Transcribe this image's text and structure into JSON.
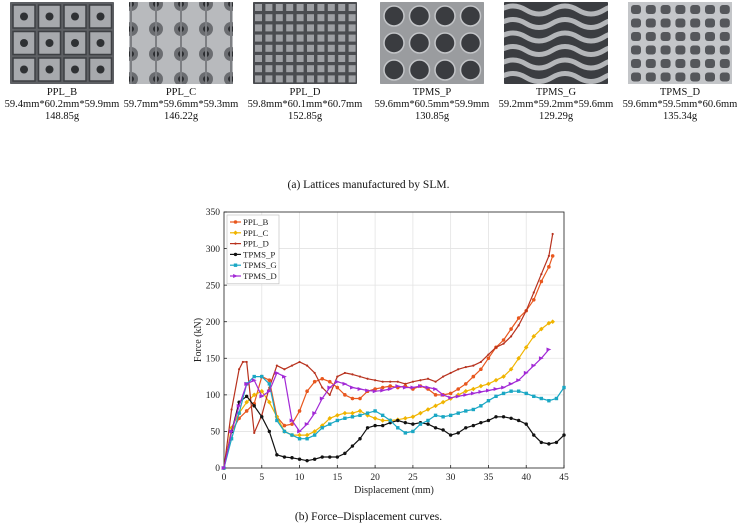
{
  "samples": [
    {
      "name": "PPL_B",
      "dims": "59.4mm*60.2mm*59.9mm",
      "mass": "148.85g",
      "pattern": "square-grid-holes"
    },
    {
      "name": "PPL_C",
      "dims": "59.7mm*59.6mm*59.3mm",
      "mass": "146.22g",
      "pattern": "cross-nodes"
    },
    {
      "name": "PPL_D",
      "dims": "59.8mm*60.1mm*60.7mm",
      "mass": "152.85g",
      "pattern": "fine-grid"
    },
    {
      "name": "TPMS_P",
      "dims": "59.6mm*60.5mm*59.9mm",
      "mass": "130.85g",
      "pattern": "circular-holes"
    },
    {
      "name": "TPMS_G",
      "dims": "59.2mm*59.2mm*59.6mm",
      "mass": "129.29g",
      "pattern": "gyroid-waves"
    },
    {
      "name": "TPMS_D",
      "dims": "59.6mm*59.5mm*60.6mm",
      "mass": "135.34g",
      "pattern": "diamond-cells"
    }
  ],
  "caption_a": "(a) Lattices manufactured by SLM.",
  "caption_b": "(b) Force–Displacement curves.",
  "chart_data": {
    "type": "line",
    "xlabel": "Displacement (mm)",
    "ylabel": "Force (kN)",
    "xlim": [
      0,
      45
    ],
    "ylim": [
      0,
      350
    ],
    "xticks": [
      0,
      5,
      10,
      15,
      20,
      25,
      30,
      35,
      40,
      45
    ],
    "yticks": [
      0,
      50,
      100,
      150,
      200,
      250,
      300,
      350
    ],
    "grid": true,
    "legend": "top-left",
    "series": [
      {
        "name": "PPL_B",
        "color": "#e8571e",
        "marker": "circle",
        "x": [
          0,
          1,
          2,
          3,
          4,
          5,
          6,
          7,
          8,
          9,
          10,
          11,
          12,
          13,
          14,
          15,
          16,
          17,
          18,
          19,
          20,
          21,
          22,
          23,
          24,
          25,
          26,
          27,
          28,
          29,
          30,
          31,
          32,
          33,
          34,
          35,
          36,
          37,
          38,
          39,
          40,
          41,
          42,
          43,
          43.5
        ],
        "y": [
          0,
          50,
          68,
          78,
          88,
          125,
          120,
          70,
          58,
          60,
          78,
          105,
          118,
          122,
          118,
          110,
          100,
          95,
          95,
          105,
          108,
          110,
          112,
          110,
          112,
          108,
          112,
          108,
          100,
          100,
          102,
          108,
          115,
          125,
          135,
          150,
          165,
          175,
          190,
          205,
          215,
          230,
          255,
          275,
          290
        ]
      },
      {
        "name": "PPL_C",
        "color": "#f0b400",
        "marker": "diamond",
        "x": [
          0,
          1,
          2,
          3,
          4,
          5,
          6,
          7,
          8,
          9,
          10,
          11,
          12,
          13,
          14,
          15,
          16,
          17,
          18,
          19,
          20,
          21,
          22,
          23,
          24,
          25,
          26,
          27,
          28,
          29,
          30,
          31,
          32,
          33,
          34,
          35,
          36,
          37,
          38,
          39,
          40,
          41,
          42,
          43,
          43.5
        ],
        "y": [
          0,
          55,
          75,
          90,
          100,
          105,
          90,
          70,
          50,
          45,
          45,
          45,
          50,
          58,
          68,
          72,
          75,
          75,
          78,
          72,
          68,
          65,
          65,
          66,
          68,
          70,
          75,
          80,
          85,
          90,
          95,
          100,
          105,
          108,
          112,
          115,
          120,
          125,
          135,
          150,
          165,
          180,
          190,
          198,
          200
        ]
      },
      {
        "name": "PPL_D",
        "color": "#b8321e",
        "marker": "dot",
        "x": [
          0,
          1,
          2,
          2.5,
          3,
          4,
          5,
          6,
          7,
          8,
          9,
          10,
          11,
          12,
          13,
          14,
          15,
          16,
          17,
          18,
          19,
          20,
          21,
          22,
          23,
          24,
          25,
          26,
          27,
          28,
          29,
          30,
          31,
          32,
          33,
          34,
          35,
          36,
          37,
          38,
          39,
          40,
          41,
          42,
          43,
          43.5
        ],
        "y": [
          0,
          80,
          135,
          145,
          145,
          48,
          72,
          110,
          140,
          135,
          140,
          145,
          140,
          130,
          110,
          100,
          125,
          130,
          128,
          125,
          122,
          120,
          118,
          118,
          118,
          115,
          118,
          120,
          122,
          118,
          125,
          130,
          135,
          138,
          140,
          145,
          155,
          165,
          170,
          180,
          195,
          215,
          240,
          265,
          290,
          320
        ]
      },
      {
        "name": "TPMS_P",
        "color": "#111111",
        "marker": "star",
        "x": [
          0,
          1,
          2,
          3,
          4,
          5,
          6,
          7,
          8,
          9,
          10,
          11,
          12,
          13,
          14,
          15,
          16,
          17,
          18,
          19,
          20,
          21,
          22,
          23,
          24,
          25,
          26,
          27,
          28,
          29,
          30,
          31,
          32,
          33,
          34,
          35,
          36,
          37,
          38,
          39,
          40,
          41,
          42,
          43,
          44,
          45
        ],
        "y": [
          0,
          50,
          90,
          98,
          85,
          70,
          50,
          18,
          15,
          14,
          12,
          10,
          12,
          15,
          15,
          15,
          20,
          30,
          40,
          55,
          58,
          58,
          62,
          65,
          62,
          60,
          62,
          60,
          55,
          52,
          45,
          48,
          55,
          58,
          62,
          65,
          70,
          70,
          68,
          65,
          60,
          45,
          35,
          33,
          35,
          45
        ]
      },
      {
        "name": "TPMS_G",
        "color": "#1aa7c4",
        "marker": "square",
        "x": [
          0,
          1,
          2,
          3,
          4,
          5,
          6,
          7,
          8,
          9,
          10,
          11,
          12,
          13,
          14,
          15,
          16,
          17,
          18,
          19,
          20,
          21,
          22,
          23,
          24,
          25,
          26,
          27,
          28,
          29,
          30,
          31,
          32,
          33,
          34,
          35,
          36,
          37,
          38,
          39,
          40,
          41,
          42,
          43,
          44,
          45
        ],
        "y": [
          0,
          40,
          75,
          115,
          125,
          125,
          115,
          65,
          50,
          45,
          40,
          40,
          45,
          55,
          60,
          65,
          68,
          70,
          72,
          75,
          78,
          72,
          65,
          55,
          48,
          50,
          60,
          65,
          72,
          70,
          72,
          75,
          78,
          80,
          85,
          92,
          98,
          102,
          105,
          105,
          102,
          98,
          95,
          92,
          95,
          110
        ]
      },
      {
        "name": "TPMS_D",
        "color": "#a229d6",
        "marker": "triangle",
        "x": [
          0,
          1,
          2,
          3,
          4,
          5,
          6,
          7,
          8,
          9,
          10,
          11,
          12,
          13,
          14,
          15,
          16,
          17,
          18,
          19,
          20,
          21,
          22,
          23,
          24,
          25,
          26,
          27,
          28,
          29,
          30,
          31,
          32,
          33,
          34,
          35,
          36,
          37,
          38,
          39,
          40,
          41,
          42,
          43
        ],
        "y": [
          0,
          50,
          85,
          115,
          120,
          98,
          105,
          130,
          125,
          65,
          50,
          60,
          75,
          95,
          110,
          118,
          115,
          110,
          108,
          106,
          105,
          106,
          108,
          112,
          110,
          110,
          112,
          110,
          108,
          100,
          96,
          98,
          100,
          102,
          104,
          106,
          108,
          110,
          115,
          120,
          130,
          140,
          150,
          162
        ]
      }
    ]
  }
}
